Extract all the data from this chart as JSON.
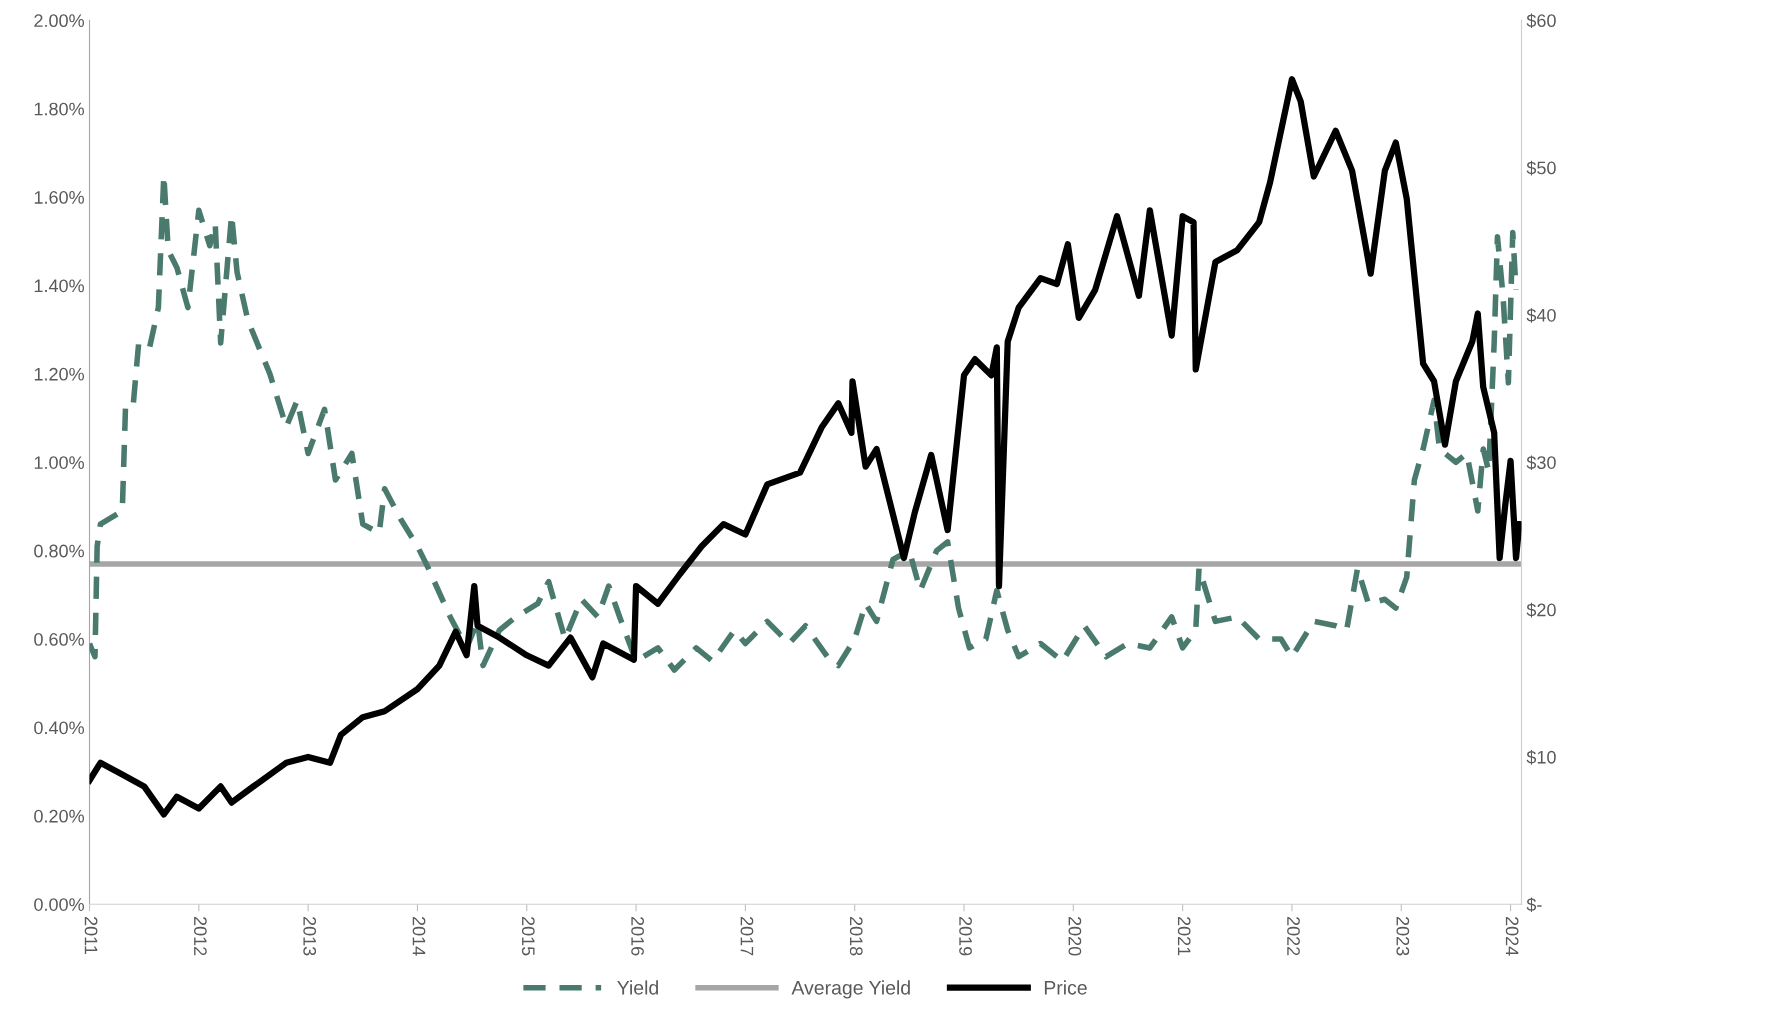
{
  "chart_data": {
    "type": "line",
    "xlim": [
      2011,
      2024.1
    ],
    "xticks": [
      2011,
      2012,
      2013,
      2014,
      2015,
      2016,
      2017,
      2018,
      2019,
      2020,
      2021,
      2022,
      2023,
      2024
    ],
    "ylim": [
      0,
      2.0
    ],
    "yticks": [
      {
        "value": 0,
        "label": "0.00%"
      },
      {
        "value": 0.2,
        "label": "0.20%"
      },
      {
        "value": 0.4,
        "label": "0.40%"
      },
      {
        "value": 0.6,
        "label": "0.60%"
      },
      {
        "value": 0.8,
        "label": "0.80%"
      },
      {
        "value": 1.0,
        "label": "1.00%"
      },
      {
        "value": 1.2,
        "label": "1.20%"
      },
      {
        "value": 1.4,
        "label": "1.40%"
      },
      {
        "value": 1.6,
        "label": "1.60%"
      },
      {
        "value": 1.8,
        "label": "1.80%"
      },
      {
        "value": 2.0,
        "label": "2.00%"
      }
    ],
    "y2lim": [
      0,
      60
    ],
    "y2ticks": [
      {
        "value": 0,
        "label": "$-"
      },
      {
        "value": 10,
        "label": "$10"
      },
      {
        "value": 20,
        "label": "$20"
      },
      {
        "value": 30,
        "label": "$30"
      },
      {
        "value": 40,
        "label": "$40"
      },
      {
        "value": 50,
        "label": "$50"
      },
      {
        "value": 60,
        "label": "$60"
      }
    ],
    "grid": false,
    "legend": "bottom",
    "series": [
      {
        "name": "Yield",
        "color": "#4a7a6e",
        "line_style": "dashed",
        "axis": "y",
        "x": [
          2011.0,
          2011.05,
          2011.07,
          2011.1,
          2011.3,
          2011.33,
          2011.4,
          2011.45,
          2011.55,
          2011.63,
          2011.68,
          2011.72,
          2011.8,
          2011.9,
          2012.0,
          2012.1,
          2012.15,
          2012.2,
          2012.3,
          2012.35,
          2012.45,
          2012.65,
          2012.7,
          2012.8,
          2012.9,
          2013.0,
          2013.15,
          2013.25,
          2013.4,
          2013.5,
          2013.65,
          2013.7,
          2013.85,
          2014.0,
          2014.1,
          2014.3,
          2014.45,
          2014.55,
          2014.6,
          2014.75,
          2014.9,
          2015.1,
          2015.2,
          2015.35,
          2015.5,
          2015.65,
          2015.75,
          2015.85,
          2016.0,
          2016.2,
          2016.35,
          2016.55,
          2016.7,
          2016.9,
          2017.0,
          2017.2,
          2017.4,
          2017.55,
          2017.75,
          2017.85,
          2018.0,
          2018.1,
          2018.2,
          2018.35,
          2018.5,
          2018.6,
          2018.75,
          2018.85,
          2018.95,
          2019.05,
          2019.2,
          2019.3,
          2019.4,
          2019.5,
          2019.7,
          2019.9,
          2020.1,
          2020.3,
          2020.5,
          2020.7,
          2020.9,
          2021.0,
          2021.12,
          2021.15,
          2021.3,
          2021.5,
          2021.7,
          2021.9,
          2022.0,
          2022.2,
          2022.4,
          2022.5,
          2022.6,
          2022.7,
          2022.85,
          2022.95,
          2023.05,
          2023.12,
          2023.2,
          2023.3,
          2023.35,
          2023.5,
          2023.6,
          2023.7,
          2023.75,
          2023.8,
          2023.85,
          2023.88,
          2023.93,
          2023.98,
          2024.02,
          2024.05
        ],
        "values": [
          0.59,
          0.56,
          0.81,
          0.86,
          0.89,
          1.13,
          1.13,
          1.27,
          1.26,
          1.35,
          1.65,
          1.48,
          1.44,
          1.35,
          1.57,
          1.49,
          1.54,
          1.27,
          1.56,
          1.43,
          1.32,
          1.2,
          1.16,
          1.08,
          1.14,
          1.02,
          1.12,
          0.96,
          1.02,
          0.86,
          0.84,
          0.94,
          0.87,
          0.81,
          0.76,
          0.65,
          0.58,
          0.64,
          0.54,
          0.62,
          0.65,
          0.68,
          0.73,
          0.6,
          0.69,
          0.65,
          0.72,
          0.65,
          0.55,
          0.58,
          0.53,
          0.58,
          0.55,
          0.62,
          0.59,
          0.64,
          0.59,
          0.63,
          0.56,
          0.54,
          0.6,
          0.68,
          0.64,
          0.78,
          0.8,
          0.71,
          0.8,
          0.82,
          0.67,
          0.58,
          0.6,
          0.71,
          0.62,
          0.56,
          0.59,
          0.55,
          0.63,
          0.56,
          0.59,
          0.58,
          0.65,
          0.58,
          0.62,
          0.76,
          0.64,
          0.65,
          0.6,
          0.6,
          0.56,
          0.64,
          0.63,
          0.62,
          0.76,
          0.68,
          0.69,
          0.67,
          0.74,
          0.96,
          1.03,
          1.14,
          1.03,
          1.0,
          1.02,
          0.89,
          1.03,
          0.98,
          1.27,
          1.51,
          1.38,
          1.18,
          1.52,
          1.39
        ]
      },
      {
        "name": "Price",
        "color": "#000000",
        "line_style": "solid",
        "axis": "y2",
        "x": [
          2011.0,
          2011.1,
          2011.3,
          2011.5,
          2011.68,
          2011.8,
          2012.0,
          2012.2,
          2012.3,
          2012.5,
          2012.8,
          2013.0,
          2013.2,
          2013.3,
          2013.5,
          2013.7,
          2014.0,
          2014.2,
          2014.35,
          2014.45,
          2014.52,
          2014.55,
          2014.75,
          2015.0,
          2015.2,
          2015.4,
          2015.6,
          2015.7,
          2015.98,
          2016.0,
          2016.2,
          2016.4,
          2016.6,
          2016.8,
          2017.0,
          2017.2,
          2017.5,
          2017.7,
          2017.85,
          2017.97,
          2017.98,
          2018.1,
          2018.2,
          2018.45,
          2018.55,
          2018.7,
          2018.85,
          2019.0,
          2019.1,
          2019.25,
          2019.3,
          2019.32,
          2019.4,
          2019.5,
          2019.7,
          2019.85,
          2019.95,
          2020.05,
          2020.2,
          2020.4,
          2020.6,
          2020.7,
          2020.9,
          2021.0,
          2021.1,
          2021.12,
          2021.3,
          2021.5,
          2021.7,
          2021.8,
          2022.0,
          2022.08,
          2022.2,
          2022.4,
          2022.55,
          2022.72,
          2022.85,
          2022.95,
          2023.05,
          2023.2,
          2023.3,
          2023.4,
          2023.5,
          2023.65,
          2023.7,
          2023.75,
          2023.85,
          2023.9,
          2023.95,
          2024.0,
          2024.05,
          2024.08
        ],
        "values": [
          8.4,
          9.6,
          8.8,
          8.0,
          6.1,
          7.3,
          6.5,
          8.0,
          6.9,
          8.0,
          9.6,
          10.0,
          9.6,
          11.5,
          12.7,
          13.1,
          14.6,
          16.2,
          18.5,
          16.9,
          21.6,
          18.9,
          18.1,
          16.9,
          16.2,
          18.1,
          15.4,
          17.7,
          16.6,
          21.6,
          20.4,
          22.4,
          24.3,
          25.8,
          25.1,
          28.5,
          29.3,
          32.4,
          34.0,
          32.0,
          35.5,
          29.7,
          30.9,
          23.5,
          26.6,
          30.5,
          25.4,
          35.9,
          37.0,
          35.9,
          37.8,
          21.6,
          38.2,
          40.5,
          42.5,
          42.1,
          44.8,
          39.8,
          41.7,
          46.7,
          41.3,
          47.1,
          38.6,
          46.7,
          46.3,
          36.3,
          43.6,
          44.4,
          46.3,
          49.0,
          56.0,
          54.5,
          49.4,
          52.5,
          49.8,
          42.8,
          49.8,
          51.7,
          47.9,
          36.7,
          35.5,
          31.2,
          35.5,
          38.2,
          40.1,
          35.1,
          32.0,
          23.5,
          27.0,
          30.1,
          23.5,
          25.8
        ]
      }
    ],
    "ref_lines": [
      {
        "axis": "y",
        "value": 0.77,
        "label": "Average Yield",
        "color": "#a6a6a6",
        "line_style": "solid"
      }
    ]
  }
}
